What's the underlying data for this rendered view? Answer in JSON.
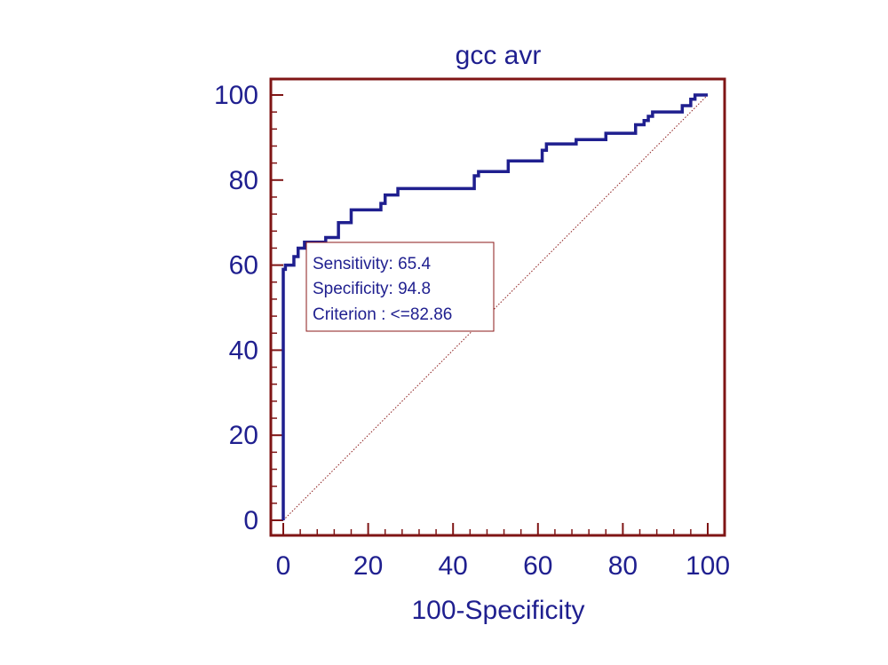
{
  "chart_data": {
    "type": "line",
    "title": "gcc avr",
    "xlabel": "100-Specificity",
    "ylabel": "",
    "xlim": [
      0,
      100
    ],
    "ylim": [
      0,
      100
    ],
    "x_ticks": [
      0,
      20,
      40,
      60,
      80,
      100
    ],
    "y_ticks": [
      0,
      20,
      40,
      60,
      80,
      100
    ],
    "x_tick_labels": [
      "0",
      "20",
      "40",
      "60",
      "80",
      "100"
    ],
    "y_tick_labels": [
      "0",
      "20",
      "40",
      "60",
      "80",
      "100"
    ],
    "grid": false,
    "series": [
      {
        "name": "ROC curve",
        "color": "#1f1f8f",
        "x": [
          0,
          0,
          0.5,
          0.5,
          2.5,
          2.5,
          3.5,
          3.5,
          5,
          5,
          10,
          10,
          13,
          13,
          16,
          16,
          23,
          23,
          24,
          24,
          27,
          27,
          45,
          45,
          46,
          46,
          53,
          53,
          61,
          61,
          62,
          62,
          69,
          69,
          76,
          76,
          83,
          83,
          85,
          85,
          86,
          86,
          87,
          87,
          94,
          94,
          96,
          96,
          97,
          97,
          100
        ],
        "y": [
          0,
          59,
          59,
          60,
          60,
          62,
          62,
          64,
          64,
          65.4,
          65.4,
          66.5,
          66.5,
          70,
          70,
          73,
          73,
          74.5,
          74.5,
          76.5,
          76.5,
          78,
          78,
          81,
          81,
          82,
          82,
          84.5,
          84.5,
          87,
          87,
          88.5,
          88.5,
          89.5,
          89.5,
          91,
          91,
          93,
          93,
          94,
          94,
          95,
          95,
          96,
          96,
          97.5,
          97.5,
          99,
          99,
          100,
          100
        ]
      },
      {
        "name": "Reference line",
        "color": "#8b1a1a",
        "style": "dotted",
        "x": [
          0,
          100
        ],
        "y": [
          0,
          100
        ]
      }
    ],
    "annotations": {
      "sensitivity": "Sensitivity: 65.4",
      "specificity": "Specificity: 94.8",
      "criterion": "Criterion : <=82.86"
    },
    "colors": {
      "axis": "#7f1515",
      "text": "#1f1f8f",
      "roc": "#1f1f8f",
      "diagonal": "#8b1a1a",
      "box_border": "#8b1a1a"
    }
  }
}
